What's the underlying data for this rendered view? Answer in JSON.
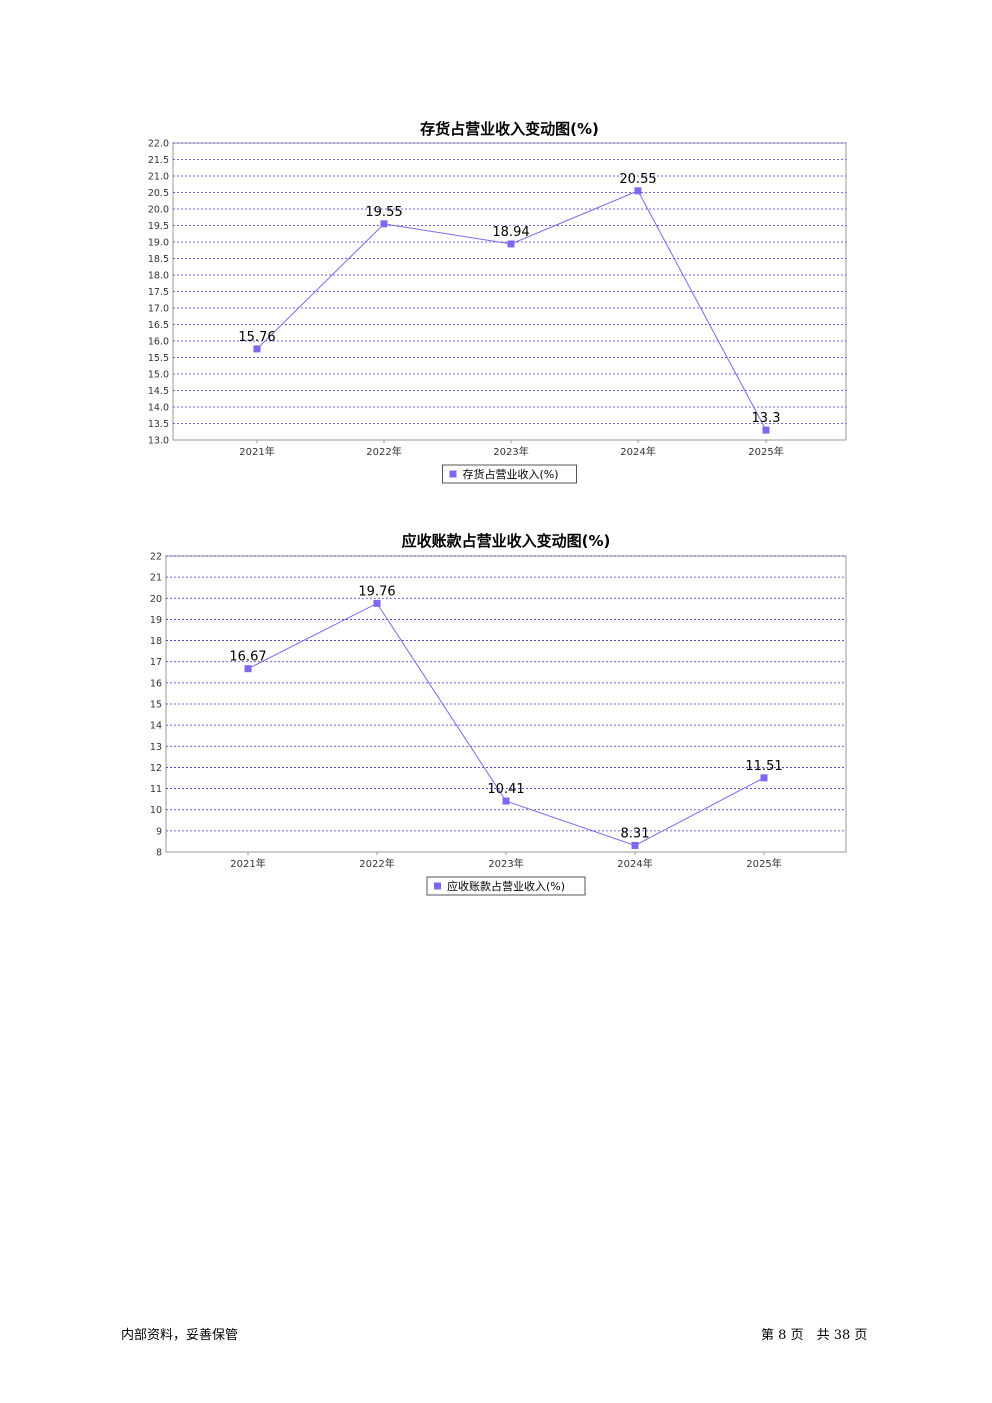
{
  "chart_data": [
    {
      "type": "line",
      "title": "存货占营业收入变动图(%)",
      "categories": [
        "2021年",
        "2022年",
        "2023年",
        "2024年",
        "2025年"
      ],
      "series": [
        {
          "name": "存货占营业收入(%)",
          "values": [
            15.76,
            19.55,
            18.94,
            20.55,
            13.3
          ]
        }
      ],
      "data_labels": [
        "15.76",
        "19.55",
        "18.94",
        "20.55",
        "13.3"
      ],
      "ylim": [
        13.0,
        22.0
      ],
      "yticks": [
        "13.0",
        "13.5",
        "14.0",
        "14.5",
        "15.0",
        "15.5",
        "16.0",
        "16.5",
        "17.0",
        "17.5",
        "18.0",
        "18.5",
        "19.0",
        "19.5",
        "20.0",
        "20.5",
        "21.0",
        "21.5",
        "22.0"
      ],
      "grid": true,
      "legend": "bottom-center",
      "color": "#7b68ee"
    },
    {
      "type": "line",
      "title": "应收账款占营业收入变动图(%)",
      "categories": [
        "2021年",
        "2022年",
        "2023年",
        "2024年",
        "2025年"
      ],
      "series": [
        {
          "name": "应收账款占营业收入(%)",
          "values": [
            16.67,
            19.76,
            10.41,
            8.31,
            11.51
          ]
        }
      ],
      "data_labels": [
        "16.67",
        "19.76",
        "10.41",
        "8.31",
        "11.51"
      ],
      "ylim": [
        8,
        22
      ],
      "yticks": [
        "8",
        "9",
        "10",
        "11",
        "12",
        "13",
        "14",
        "15",
        "16",
        "17",
        "18",
        "19",
        "20",
        "21",
        "22"
      ],
      "grid": true,
      "legend": "bottom-center",
      "color": "#7b68ee"
    }
  ],
  "footer": {
    "left": "内部资料，妥善保管",
    "page_prefix": "第",
    "page_number": "8",
    "page_mid": "页　共",
    "page_total": "38",
    "page_suffix": "页"
  }
}
